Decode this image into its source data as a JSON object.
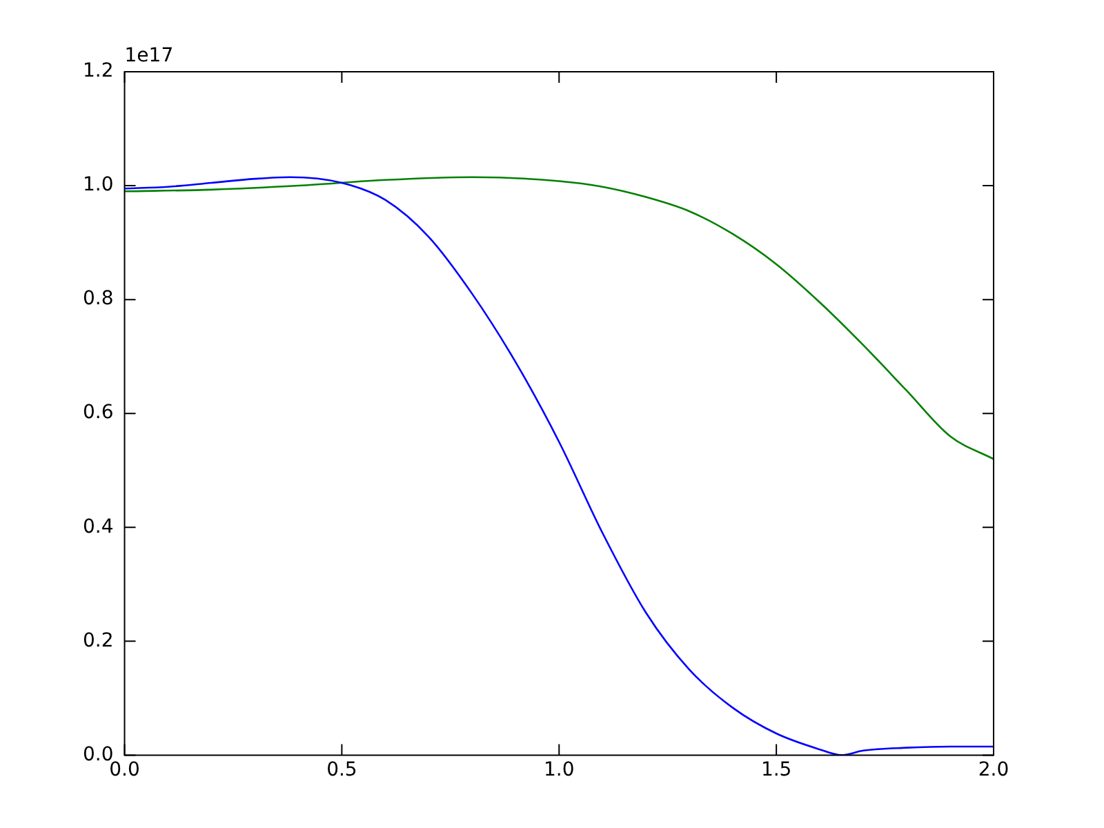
{
  "chart_data": {
    "type": "line",
    "annotations": [
      "1e17"
    ],
    "series": [
      {
        "color": "#0000ff",
        "x": [
          0,
          0.1,
          0.2,
          0.3,
          0.38,
          0.5,
          0.6,
          0.7,
          0.8,
          0.9,
          1.0,
          1.1,
          1.2,
          1.3,
          1.4,
          1.5,
          1.6,
          1.65,
          1.7,
          1.8,
          1.9,
          2.0
        ],
        "values": [
          0.995,
          0.998,
          1.005,
          1.012,
          1.015,
          1.005,
          0.975,
          0.91,
          0.81,
          0.69,
          0.55,
          0.39,
          0.25,
          0.15,
          0.083,
          0.038,
          0.01,
          0,
          0.008,
          0.013,
          0.015,
          0.015
        ]
      },
      {
        "color": "#008000",
        "x": [
          0,
          0.2,
          0.4,
          0.6,
          0.8,
          1.0,
          1.1,
          1.2,
          1.3,
          1.4,
          1.5,
          1.6,
          1.7,
          1.8,
          1.9,
          2.0
        ],
        "values": [
          0.99,
          0.993,
          1.0,
          1.01,
          1.015,
          1.008,
          0.998,
          0.98,
          0.955,
          0.915,
          0.862,
          0.795,
          0.72,
          0.64,
          0.56,
          0.52
        ]
      }
    ],
    "xlim": [
      0,
      2
    ],
    "xticks": [
      {
        "value": 0,
        "label": "0.0"
      },
      {
        "value": 0.5,
        "label": "0.5"
      },
      {
        "value": 1,
        "label": "1.0"
      },
      {
        "value": 1.5,
        "label": "1.5"
      },
      {
        "value": 2,
        "label": "2.0"
      }
    ],
    "ylim": [
      0,
      1.2
    ],
    "yticks": [
      {
        "value": 0,
        "label": "0.0"
      },
      {
        "value": 0.2,
        "label": "0.2"
      },
      {
        "value": 0.4,
        "label": "0.4"
      },
      {
        "value": 0.6,
        "label": "0.6"
      },
      {
        "value": 0.8,
        "label": "0.8"
      },
      {
        "value": 1.0,
        "label": "1.0"
      },
      {
        "value": 1.2,
        "label": "1.2"
      }
    ],
    "grid": false,
    "legend": false,
    "marker": "none",
    "line_style": "solid"
  }
}
